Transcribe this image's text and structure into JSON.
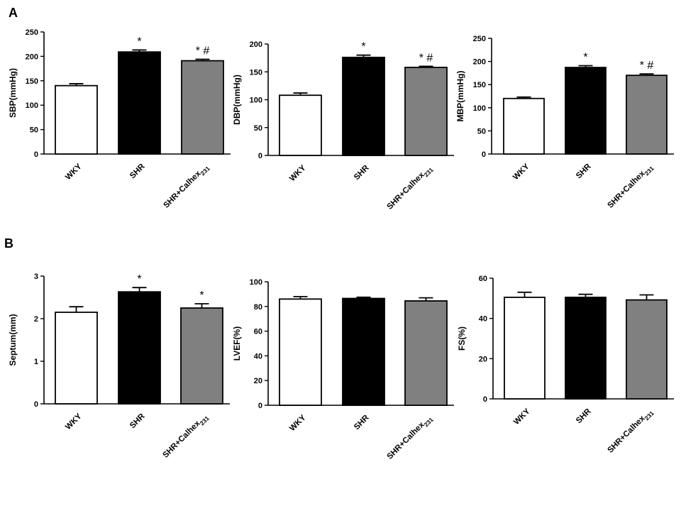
{
  "panels": [
    "A",
    "B"
  ],
  "chart_data": [
    {
      "type": "bar",
      "panel": "A",
      "categories": [
        "WKY",
        "SHR",
        "SHR+Calhex231"
      ],
      "values": [
        140,
        209,
        191
      ],
      "errors": [
        4,
        4,
        3
      ],
      "annotations": [
        "",
        "*",
        "*#"
      ],
      "ylabel": "SBP(mmHg)",
      "ylim": [
        0,
        250
      ],
      "yticks": [
        0,
        50,
        100,
        150,
        200,
        250
      ],
      "colors": [
        "#ffffff",
        "#000000",
        "#808080"
      ]
    },
    {
      "type": "bar",
      "panel": "A",
      "categories": [
        "WKY",
        "SHR",
        "SHR+Calhex231"
      ],
      "values": [
        108,
        176,
        158
      ],
      "errors": [
        4,
        4,
        2
      ],
      "annotations": [
        "",
        "*",
        "*#"
      ],
      "ylabel": "DBP(mmHg)",
      "ylim": [
        0,
        200
      ],
      "yticks": [
        0,
        50,
        100,
        150,
        200
      ],
      "colors": [
        "#ffffff",
        "#000000",
        "#808080"
      ]
    },
    {
      "type": "bar",
      "panel": "A",
      "categories": [
        "WKY",
        "SHR",
        "SHR+Calhex231"
      ],
      "values": [
        120,
        187,
        170
      ],
      "errors": [
        3,
        4,
        3
      ],
      "annotations": [
        "",
        "*",
        "*#"
      ],
      "ylabel": "MBP(mmHg)",
      "ylim": [
        0,
        250
      ],
      "yticks": [
        0,
        50,
        100,
        150,
        200,
        250
      ],
      "colors": [
        "#ffffff",
        "#000000",
        "#808080"
      ]
    },
    {
      "type": "bar",
      "panel": "B",
      "categories": [
        "WKY",
        "SHR",
        "SHR+Calhex231"
      ],
      "values": [
        2.15,
        2.63,
        2.25
      ],
      "errors": [
        0.13,
        0.1,
        0.1
      ],
      "annotations": [
        "",
        "*",
        "*"
      ],
      "ylabel": "Septum(mm)",
      "ylim": [
        0,
        3
      ],
      "yticks": [
        0,
        1,
        2,
        3
      ],
      "colors": [
        "#ffffff",
        "#000000",
        "#808080"
      ]
    },
    {
      "type": "bar",
      "panel": "B",
      "categories": [
        "WKY",
        "SHR",
        "SHR+Calhex231"
      ],
      "values": [
        86,
        86.5,
        84.5
      ],
      "errors": [
        2,
        1,
        2.5
      ],
      "annotations": [
        "",
        "",
        ""
      ],
      "ylabel": "LVEF(%)",
      "ylim": [
        0,
        100
      ],
      "yticks": [
        0,
        20,
        40,
        60,
        80,
        100
      ],
      "colors": [
        "#ffffff",
        "#000000",
        "#808080"
      ]
    },
    {
      "type": "bar",
      "panel": "B",
      "categories": [
        "WKY",
        "SHR",
        "SHR+Calhex231"
      ],
      "values": [
        50.5,
        50.5,
        49.2
      ],
      "errors": [
        2.5,
        1.5,
        2.5
      ],
      "annotations": [
        "",
        "",
        ""
      ],
      "ylabel": "FS(%)",
      "ylim": [
        0,
        60
      ],
      "yticks": [
        0,
        20,
        40,
        60
      ],
      "colors": [
        "#ffffff",
        "#000000",
        "#808080"
      ]
    }
  ]
}
